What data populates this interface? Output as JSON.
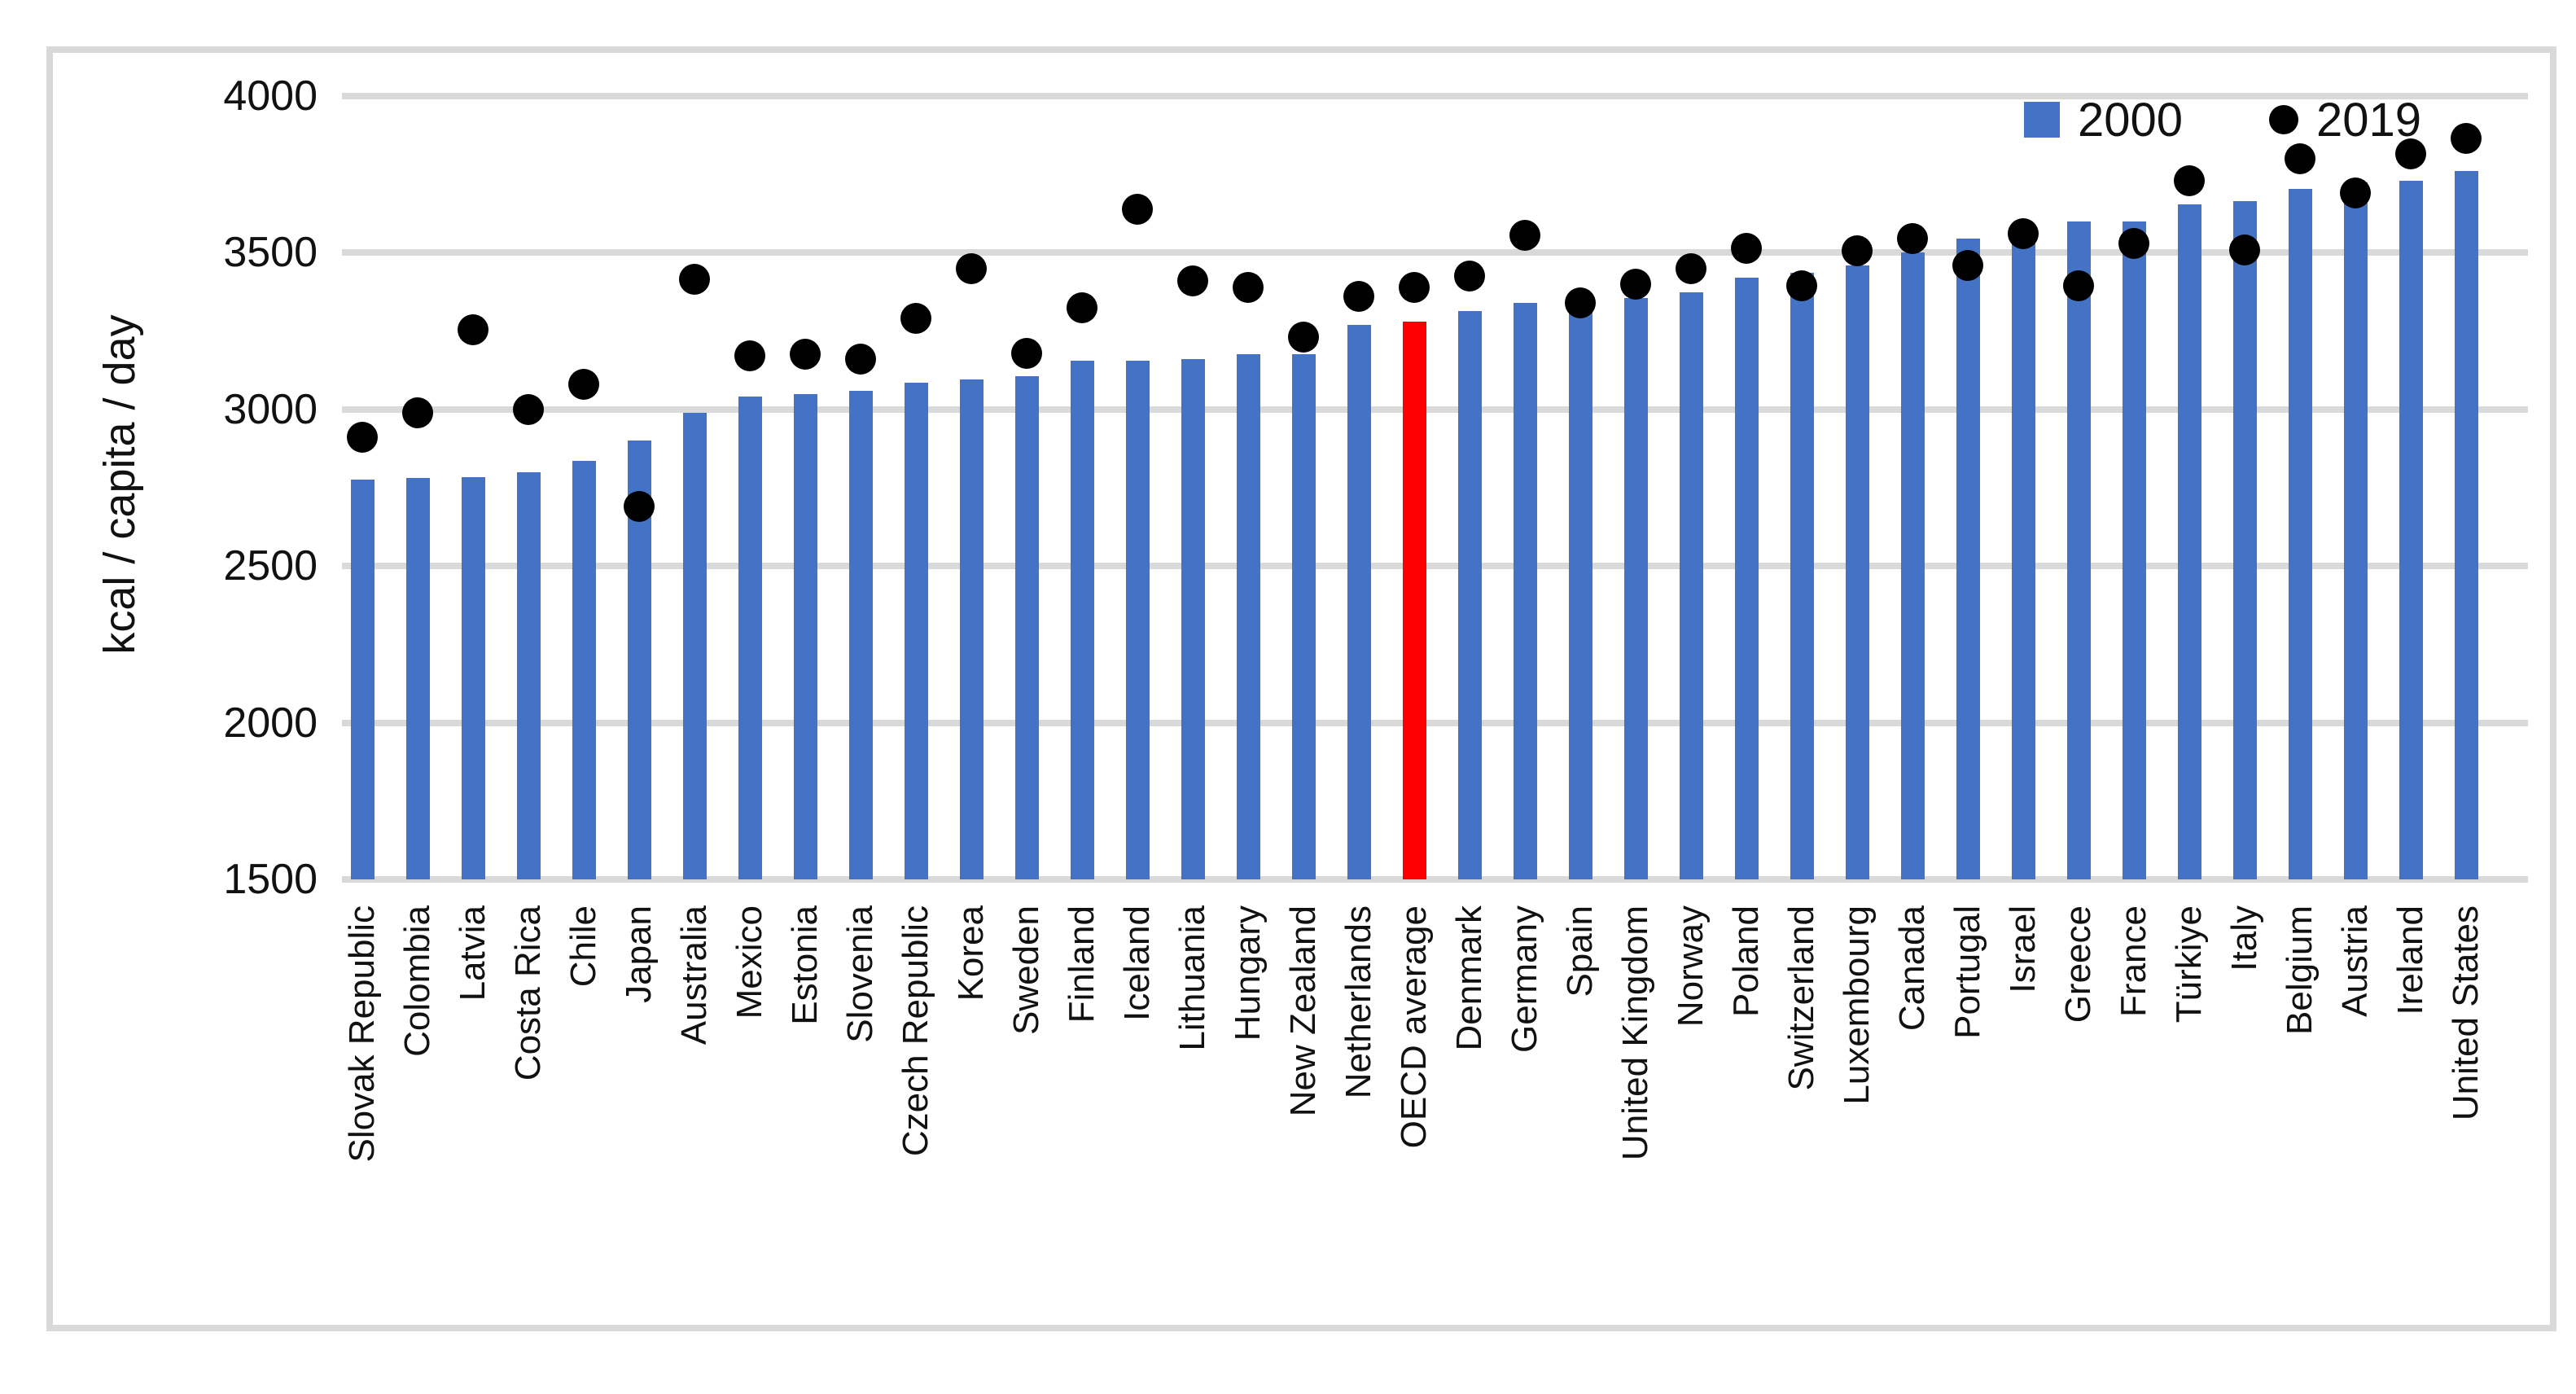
{
  "chart_data": {
    "type": "bar",
    "subtype": "combo-bar-scatter",
    "title": "",
    "xlabel": "",
    "ylabel": "kcal / capita / day",
    "yticks": [
      4000,
      3500,
      3000,
      2500,
      2000,
      1500
    ],
    "ylim": [
      1500,
      4100
    ],
    "grid": true,
    "legend_position": "top-right",
    "categories": [
      "Slovak Republic",
      "Colombia",
      "Latvia",
      "Costa Rica",
      "Chile",
      "Japan",
      "Australia",
      "Mexico",
      "Estonia",
      "Slovenia",
      "Czech Republic",
      "Korea",
      "Sweden",
      "Finland",
      "Iceland",
      "Lithuania",
      "Hungary",
      "New Zealand",
      "Netherlands",
      "OECD average",
      "Denmark",
      "Germany",
      "Spain",
      "United Kingdom",
      "Norway",
      "Poland",
      "Switzerland",
      "Luxembourg",
      "Canada",
      "Portugal",
      "Israel",
      "Greece",
      "France",
      "Türkiye",
      "Italy",
      "Belgium",
      "Austria",
      "Ireland",
      "United States"
    ],
    "series": [
      {
        "name": "2000",
        "type": "bar",
        "color": "#4472C4",
        "values": [
          2775,
          2780,
          2785,
          2800,
          2835,
          2900,
          2990,
          3040,
          3050,
          3060,
          3085,
          3095,
          3105,
          3155,
          3155,
          3160,
          3175,
          3175,
          3270,
          3280,
          3315,
          3340,
          3325,
          3355,
          3375,
          3420,
          3435,
          3460,
          3500,
          3545,
          3550,
          3600,
          3600,
          3655,
          3665,
          3705,
          3725,
          3730,
          3760
        ],
        "highlight_category": "OECD average",
        "highlight_color": "#FF0000"
      },
      {
        "name": "2019",
        "type": "scatter",
        "color": "#000000",
        "values": [
          2910,
          2990,
          3255,
          3000,
          3080,
          2690,
          3415,
          3170,
          3175,
          3160,
          3290,
          3450,
          3180,
          3325,
          3640,
          3410,
          3390,
          3230,
          3360,
          3390,
          3425,
          3555,
          3340,
          3400,
          3450,
          3515,
          3395,
          3505,
          3545,
          3460,
          3560,
          3395,
          3530,
          3730,
          3510,
          3800,
          3690,
          3815,
          3865
        ]
      }
    ]
  },
  "legend": [
    {
      "label": "2000",
      "marker": "square-icon",
      "color": "#4472C4"
    },
    {
      "label": "2019",
      "marker": "circle-icon",
      "color": "#000000"
    }
  ],
  "colors": {
    "bar": "#4472C4",
    "highlight_bar": "#FF0000",
    "dot": "#000000",
    "gridline": "#D9D9D9",
    "frame_border": "#D9D9D9",
    "text": "#111111",
    "background": "#FFFFFF"
  }
}
